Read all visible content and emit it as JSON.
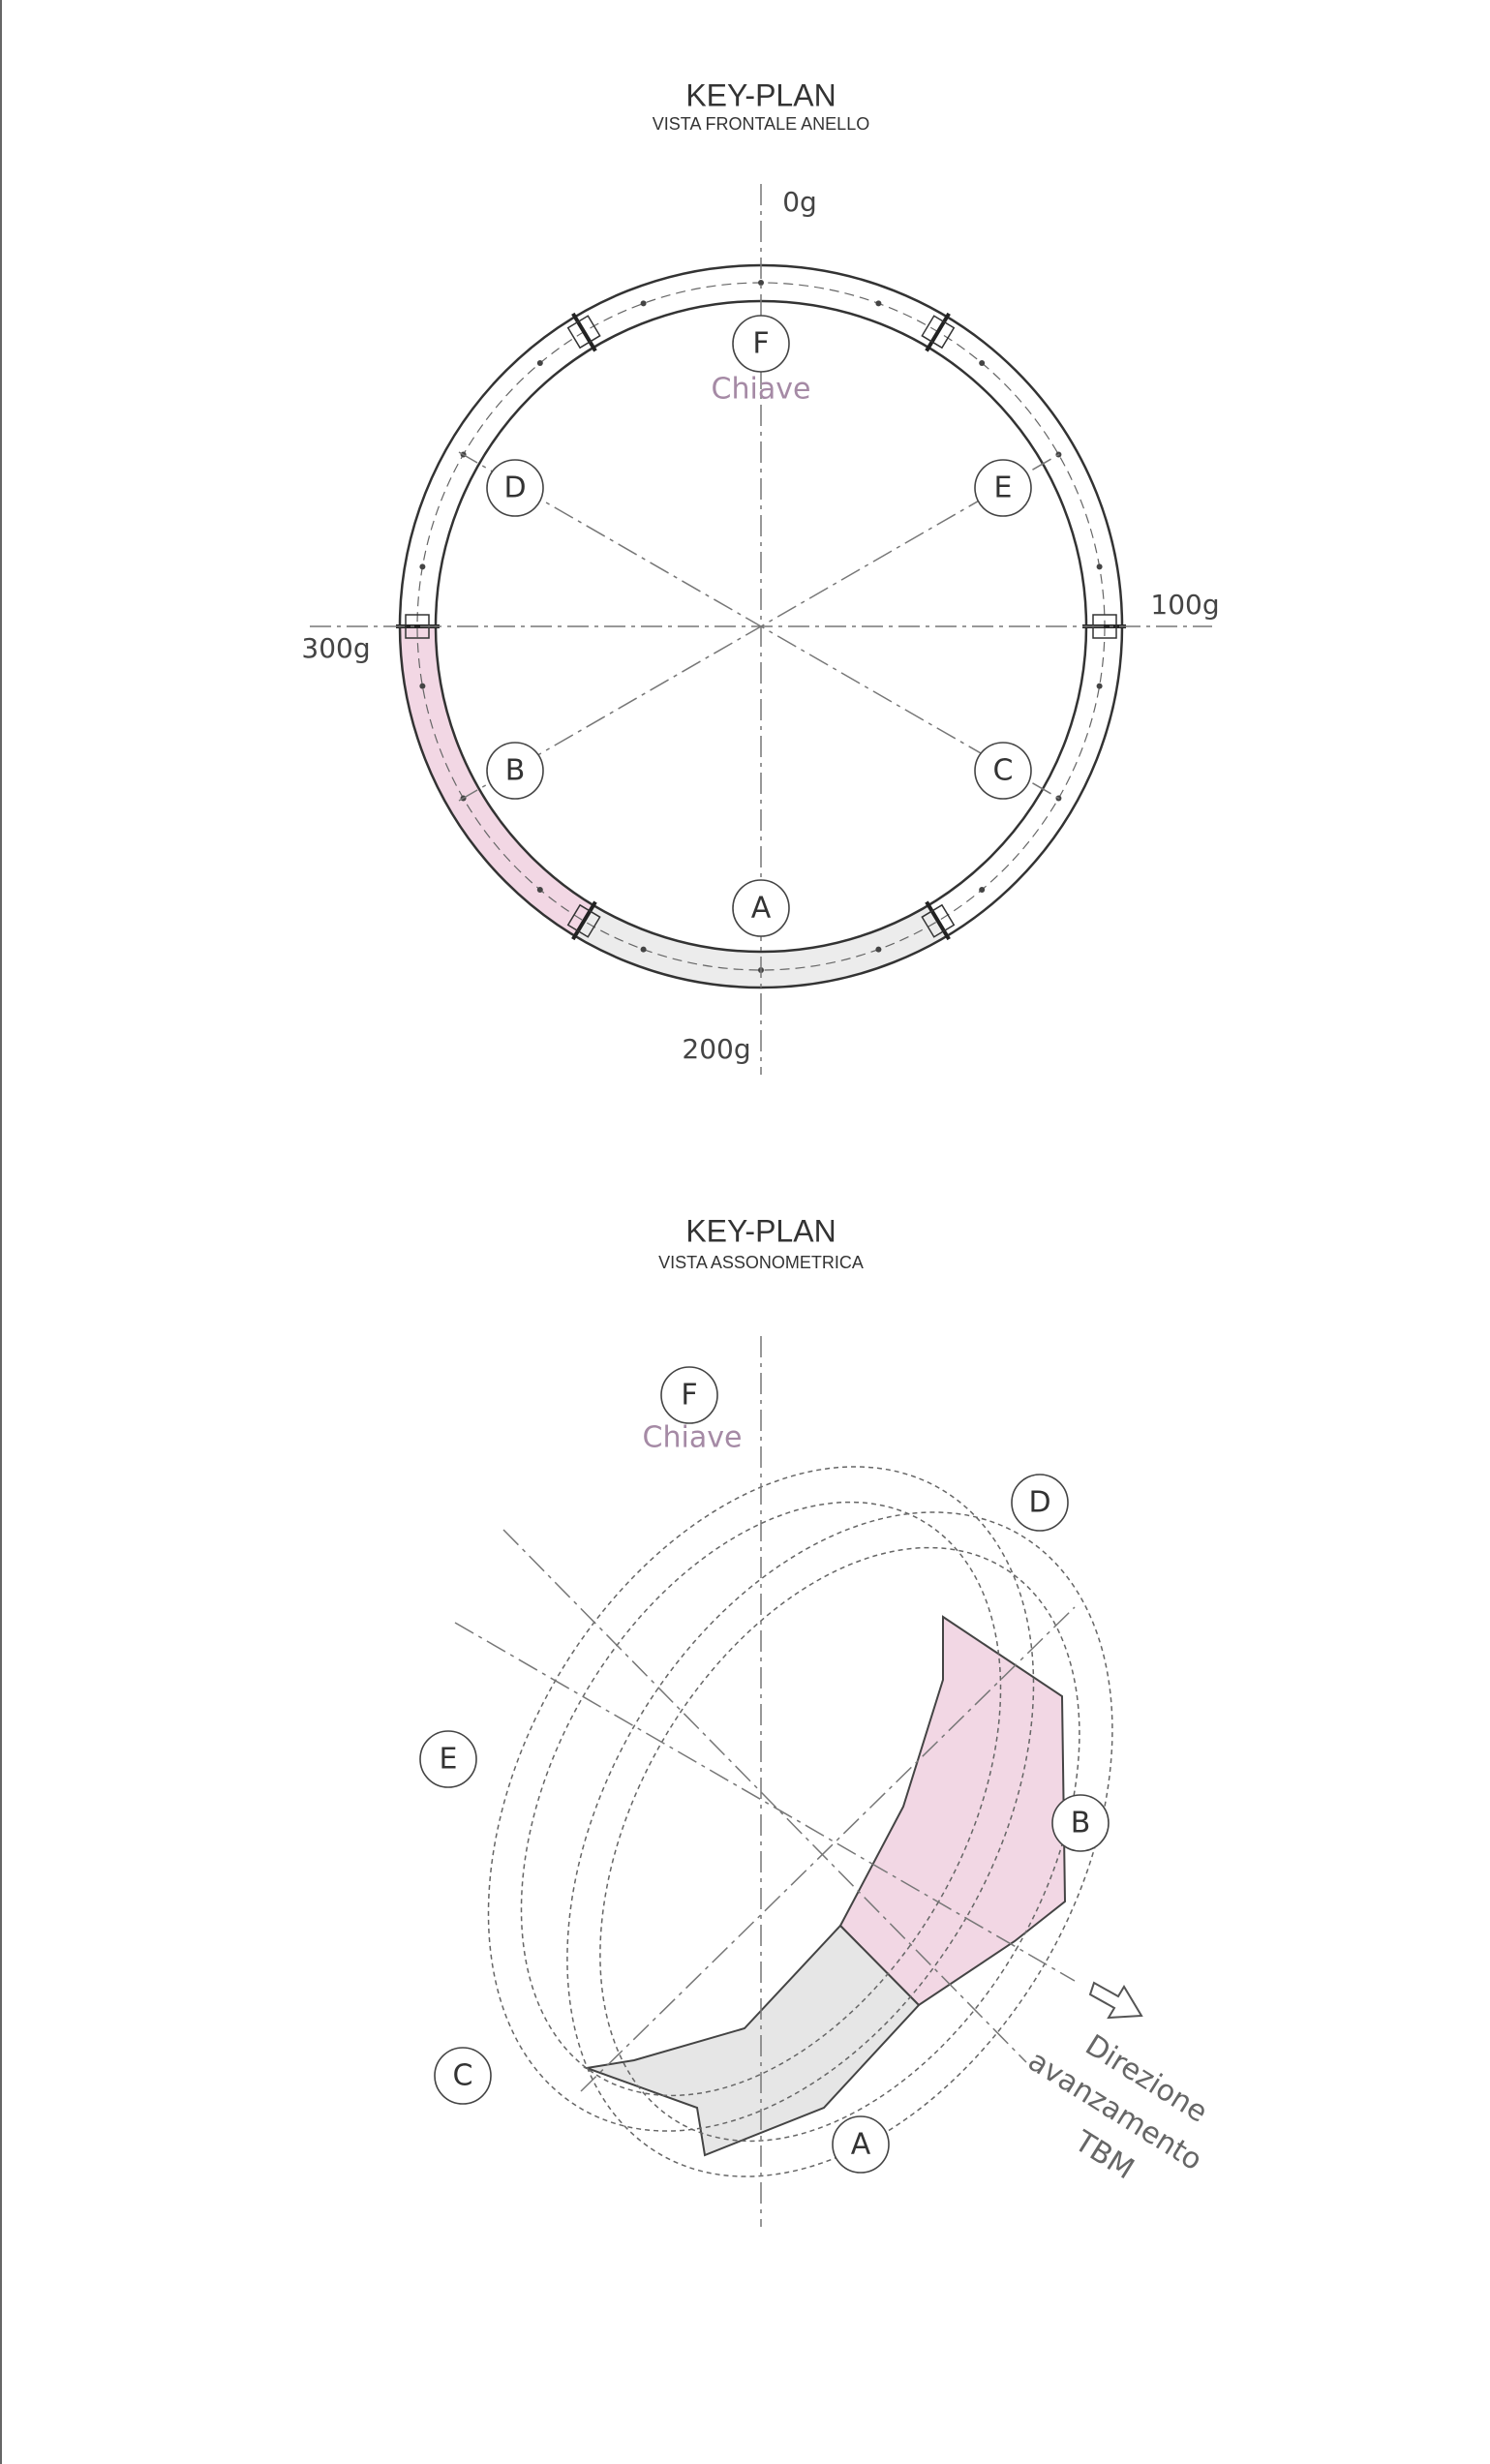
{
  "key_plan_front": {
    "title": "KEY-PLAN",
    "subtitle": "VISTA FRONTALE ANELLO",
    "angles": [
      "0g",
      "100g",
      "200g",
      "300g"
    ],
    "segments": [
      "F",
      "D",
      "E",
      "B",
      "C",
      "A"
    ],
    "key_label": "Chiave"
  },
  "key_plan_axonometric": {
    "title": "KEY-PLAN",
    "subtitle": "VISTA ASSONOMETRICA",
    "segments": [
      "F",
      "D",
      "E",
      "B",
      "C",
      "A"
    ],
    "key_label": "Chiave",
    "direction": [
      "Direzione",
      "avanzamento",
      "TBM"
    ]
  }
}
